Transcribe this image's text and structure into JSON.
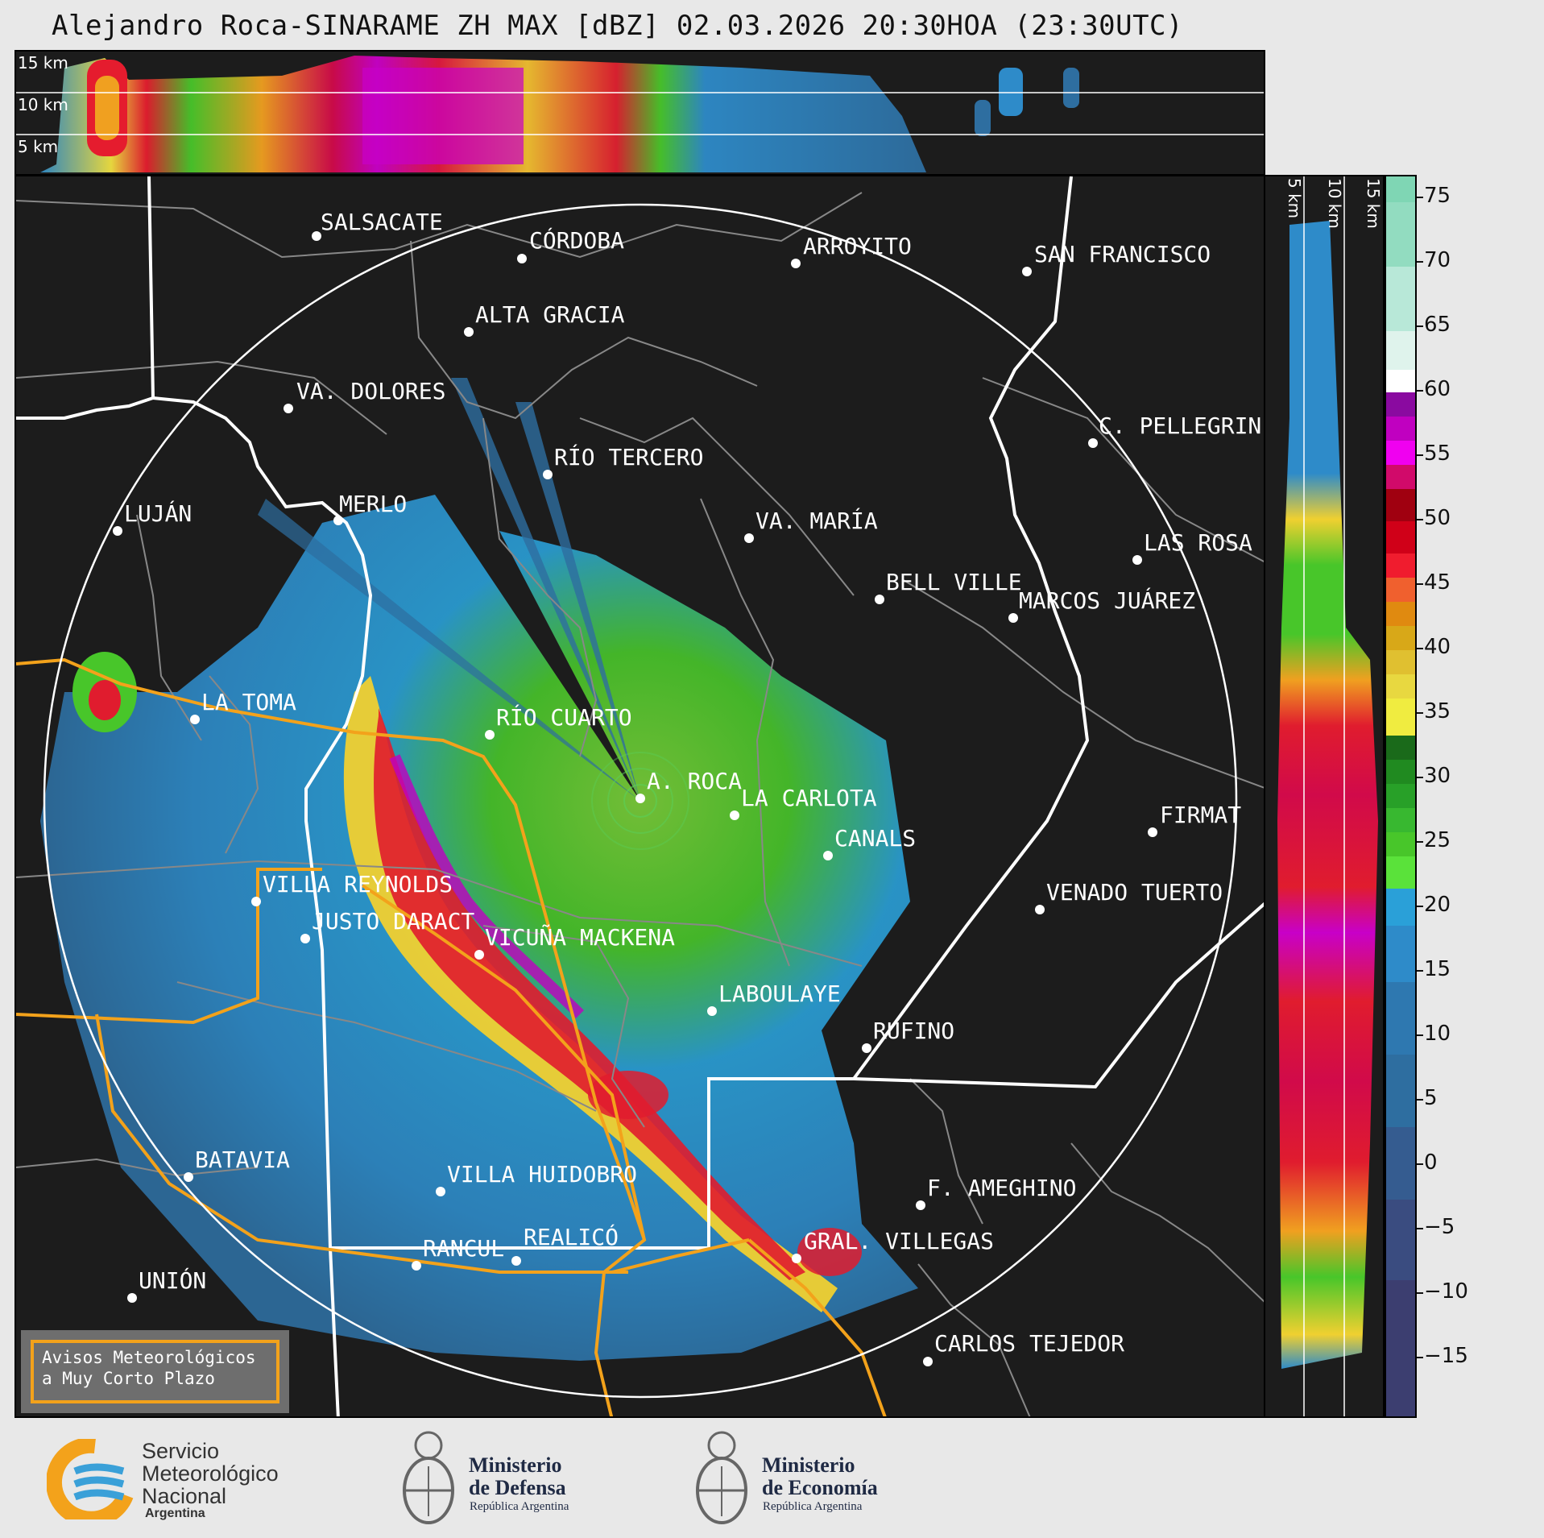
{
  "title": "Alejandro Roca-SINARAME ZH MAX [dBZ] 02.03.2026 20:30HOA (23:30UTC)",
  "top_panel": {
    "height_labels": [
      "15 km",
      "10 km",
      "5 km"
    ]
  },
  "side_panel": {
    "height_labels": [
      "5 km",
      "10 km",
      "15 km"
    ]
  },
  "colorbar": {
    "unit": "dBZ",
    "ticks": [
      "75",
      "70",
      "65",
      "60",
      "55",
      "50",
      "45",
      "40",
      "35",
      "30",
      "25",
      "20",
      "15",
      "10",
      "5",
      "0",
      "−5",
      "−10",
      "−15"
    ]
  },
  "cities": [
    {
      "name": "SALSACATE"
    },
    {
      "name": "CÓRDOBA"
    },
    {
      "name": "ARROYITO"
    },
    {
      "name": "SAN FRANCISCO"
    },
    {
      "name": "ALTA GRACIA"
    },
    {
      "name": "VA. DOLORES"
    },
    {
      "name": "C. PELLEGRINI"
    },
    {
      "name": "RÍO TERCERO"
    },
    {
      "name": "LUJÁN"
    },
    {
      "name": "MERLO"
    },
    {
      "name": "VA. MARÍA"
    },
    {
      "name": "LAS ROSA"
    },
    {
      "name": "BELL VILLE"
    },
    {
      "name": "MARCOS JUÁREZ"
    },
    {
      "name": "LA TOMA"
    },
    {
      "name": "RÍO CUARTO"
    },
    {
      "name": "A. ROCA"
    },
    {
      "name": "LA CARLOTA"
    },
    {
      "name": "FIRMAT"
    },
    {
      "name": "CANALS"
    },
    {
      "name": "VILLA REYNOLDS"
    },
    {
      "name": "VENADO TUERTO"
    },
    {
      "name": "JUSTO DARACT"
    },
    {
      "name": "VICUÑA MACKENA"
    },
    {
      "name": "LABOULAYE"
    },
    {
      "name": "RUFINO"
    },
    {
      "name": "BATAVIA"
    },
    {
      "name": "VILLA HUIDOBRO"
    },
    {
      "name": "F. AMEGHINO"
    },
    {
      "name": "RANCUL"
    },
    {
      "name": "REALICÓ"
    },
    {
      "name": "GRAL. VILLEGAS"
    },
    {
      "name": "UNIÓN"
    },
    {
      "name": "CARLOS TEJEDOR"
    }
  ],
  "legend": {
    "line1": "Avisos Meteorológicos",
    "line2": "a Muy Corto Plazo",
    "color": "#f3a21b"
  },
  "logos": {
    "smn": {
      "line1": "Servicio",
      "line2": "Meteorológico",
      "line3": "Nacional",
      "line4": "Argentina"
    },
    "defensa": {
      "line1": "Ministerio",
      "line2": "de Defensa",
      "line3": "República Argentina"
    },
    "economia": {
      "line1": "Ministerio",
      "line2": "de Economía",
      "line3": "República Argentina"
    }
  }
}
